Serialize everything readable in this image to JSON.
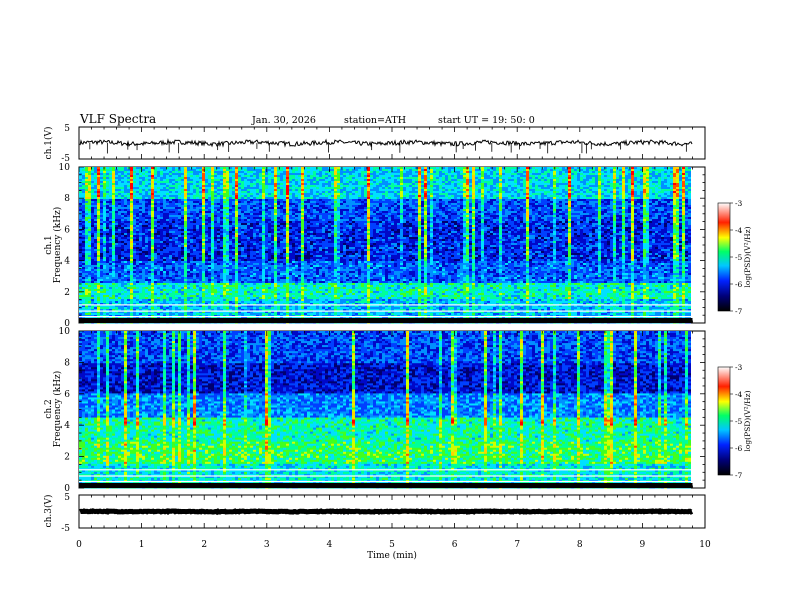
{
  "header": {
    "title": "VLF  Spectra",
    "date": "Jan.  30,  2026",
    "station": "station=ATH",
    "start": "start  UT  =    19: 50: 0"
  },
  "chart_data": [
    {
      "type": "line",
      "panel": "ch1-waveform",
      "ylabel": "ch.1(V)",
      "ylim": [
        -5,
        5
      ],
      "yticks": [
        "5",
        "-5"
      ],
      "x_range_min": [
        0,
        9.8
      ],
      "y_mean_approx": 0
    },
    {
      "type": "heatmap",
      "panel": "ch1-spectrogram",
      "ylabel_line1": "ch.1",
      "ylabel_line2": "Frequency (kHz)",
      "ylim": [
        0,
        10
      ],
      "yticks": [
        "0",
        "2",
        "4",
        "6",
        "8",
        "10"
      ],
      "x_range_min": [
        0,
        9.8
      ],
      "colorbar": {
        "label": "log(PSD)(V²/Hz)",
        "range": [
          -7,
          -3
        ],
        "ticks": [
          "-3",
          "-4",
          "-5",
          "-6",
          "-7"
        ]
      }
    },
    {
      "type": "heatmap",
      "panel": "ch2-spectrogram",
      "ylabel_line1": "ch.2",
      "ylabel_line2": "Frequency (kHz)",
      "ylim": [
        0,
        10
      ],
      "yticks": [
        "0",
        "2",
        "4",
        "6",
        "8",
        "10"
      ],
      "x_range_min": [
        0,
        9.8
      ],
      "colorbar": {
        "label": "log(PSD)(V²/Hz)",
        "range": [
          -7,
          -3
        ],
        "ticks": [
          "-3",
          "-4",
          "-5",
          "-6",
          "-7"
        ]
      }
    },
    {
      "type": "line",
      "panel": "ch3-waveform",
      "ylabel": "ch.3(V)",
      "ylim": [
        -5,
        5
      ],
      "yticks": [
        "5",
        "-5"
      ],
      "x_range_min": [
        0,
        9.8
      ],
      "y_mean_approx": 0
    }
  ],
  "xaxis": {
    "label": "Time  (min)",
    "range": [
      0,
      10
    ],
    "ticks": [
      "0",
      "1",
      "2",
      "3",
      "4",
      "5",
      "6",
      "7",
      "8",
      "9",
      "10"
    ]
  }
}
